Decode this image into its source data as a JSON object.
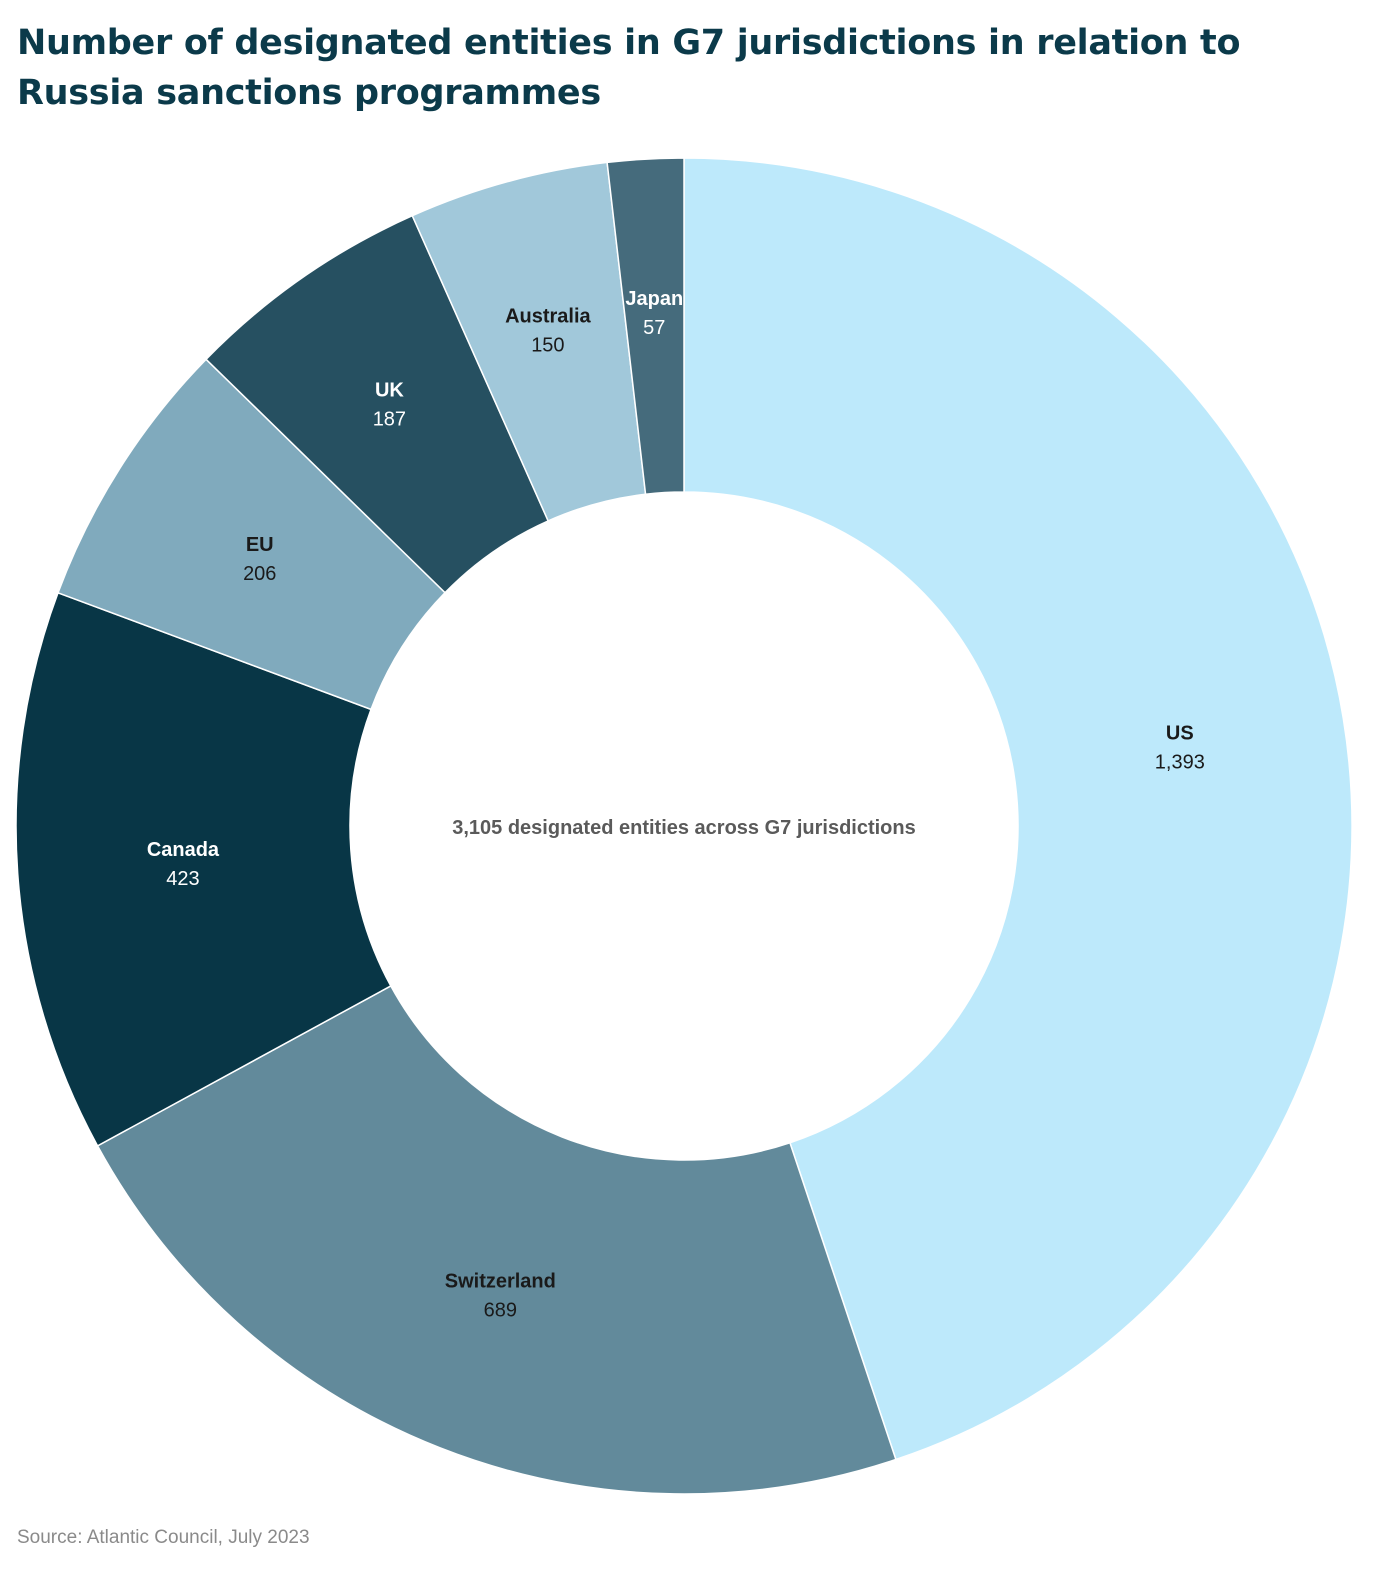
{
  "chart_data": {
    "type": "pie",
    "variant": "donut",
    "title": "Number of designated entities in G7 jurisdictions in relation to Russia sanctions programmes",
    "center_text": "3,105 designated entities across G7 jurisdictions",
    "source": "Source: Atlantic Council, July 2023",
    "legend": "none",
    "slices": [
      {
        "name": "US",
        "value": 1393,
        "label": "1,393",
        "color": "#bde9fb",
        "text_color": "#1a1a1a"
      },
      {
        "name": "Switzerland",
        "value": 689,
        "label": "689",
        "color": "#628a9b",
        "text_color": "#1a1a1a"
      },
      {
        "name": "Canada",
        "value": 423,
        "label": "423",
        "color": "#083646",
        "text_color": "#ffffff"
      },
      {
        "name": "EU",
        "value": 206,
        "label": "206",
        "color": "#80aabd",
        "text_color": "#1a1a1a"
      },
      {
        "name": "UK",
        "value": 187,
        "label": "187",
        "color": "#265061",
        "text_color": "#ffffff"
      },
      {
        "name": "Australia",
        "value": 150,
        "label": "150",
        "color": "#a1c8da",
        "text_color": "#1a1a1a"
      },
      {
        "name": "Japan",
        "value": 57,
        "label": "57",
        "color": "#456b7c",
        "text_color": "#ffffff"
      }
    ]
  }
}
